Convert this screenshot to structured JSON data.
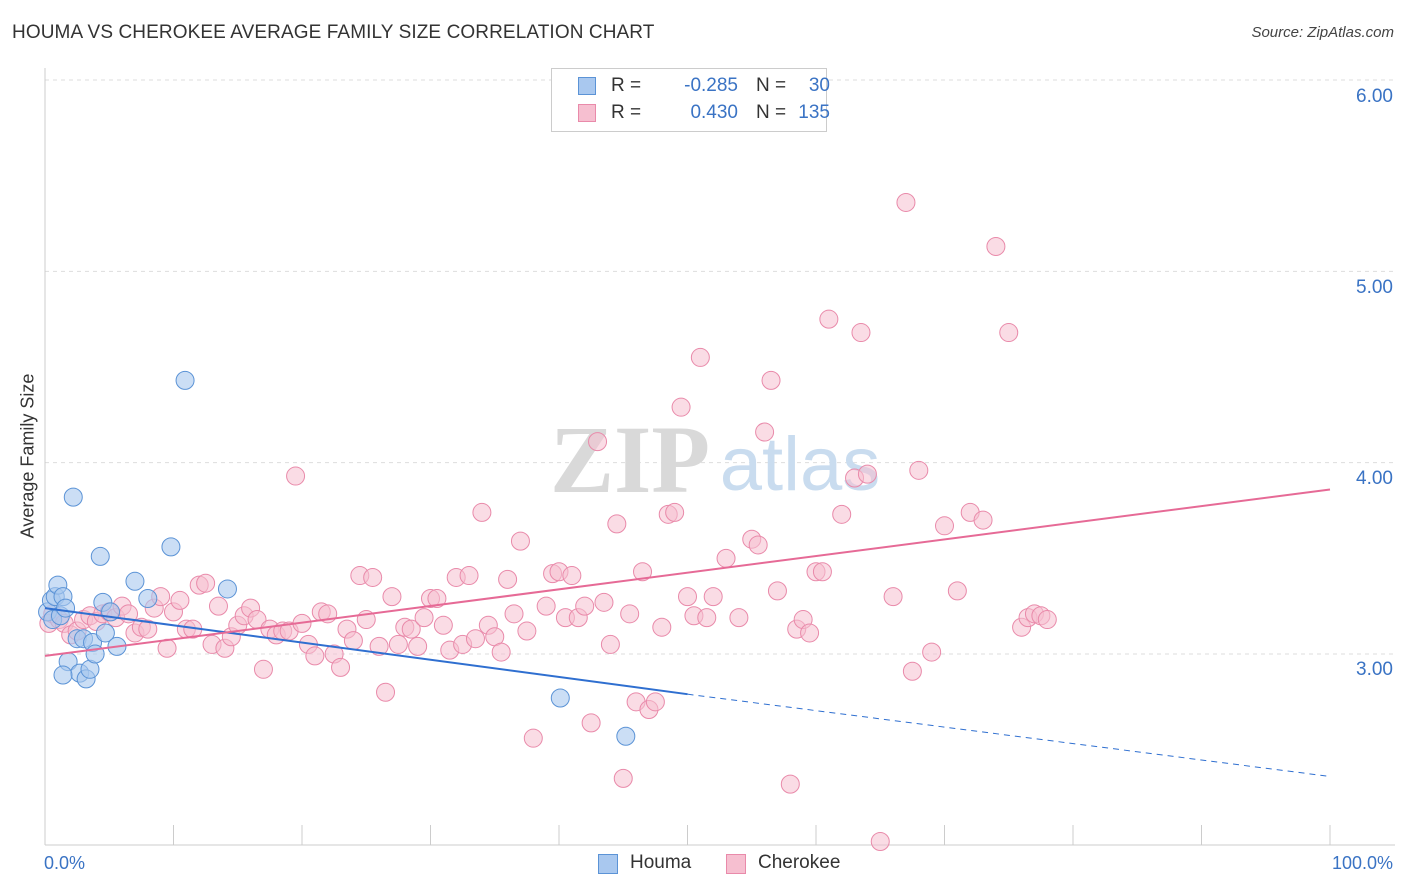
{
  "title": "HOUMA VS CHEROKEE AVERAGE FAMILY SIZE CORRELATION CHART",
  "source": "Source: ZipAtlas.com",
  "watermark": {
    "zip": "ZIP",
    "atlas": "atlas"
  },
  "legend": {
    "houma": {
      "r_label": "R =",
      "r_value": "-0.285",
      "n_label": "N =",
      "n_value": "30"
    },
    "cherokee": {
      "r_label": "R =",
      "r_value": "0.430",
      "n_label": "N =",
      "n_value": "135"
    }
  },
  "bottom_legend": {
    "houma": "Houma",
    "cherokee": "Cherokee"
  },
  "colors": {
    "houma_fill": "#a9c8ef",
    "houma_stroke": "#5b93d6",
    "houma_line": "#2f6fd0",
    "cherokee_fill": "#f6bfd0",
    "cherokee_stroke": "#e98aaa",
    "cherokee_line": "#e66a96",
    "axis_text": "#3a73c4",
    "grid": "#dddddd"
  },
  "chart_data": {
    "type": "scatter",
    "title": "HOUMA VS CHEROKEE AVERAGE FAMILY SIZE CORRELATION CHART",
    "xlabel": "",
    "ylabel": "Average Family Size",
    "xlim": [
      0,
      100
    ],
    "ylim": [
      2.0,
      6.1
    ],
    "x_tick_labels": [
      "0.0%",
      "100.0%"
    ],
    "y_ticks": [
      3.0,
      4.0,
      5.0,
      6.0
    ],
    "y_tick_labels": [
      "3.00",
      "4.00",
      "5.00",
      "6.00"
    ],
    "grid": true,
    "legend_position": "top-center",
    "series": [
      {
        "name": "Houma",
        "r": -0.285,
        "n": 30,
        "trend": {
          "x0": 0,
          "y0": 3.24,
          "x1": 50,
          "y1": 2.79,
          "dashed_to_x": 100,
          "dashed_to_y": 2.36
        },
        "points": [
          [
            0.2,
            3.22
          ],
          [
            0.5,
            3.28
          ],
          [
            0.6,
            3.18
          ],
          [
            0.8,
            3.3
          ],
          [
            1.0,
            3.36
          ],
          [
            1.2,
            3.2
          ],
          [
            1.4,
            3.3
          ],
          [
            1.6,
            3.24
          ],
          [
            1.8,
            2.96
          ],
          [
            2.2,
            3.82
          ],
          [
            2.5,
            3.08
          ],
          [
            2.7,
            2.9
          ],
          [
            3.0,
            3.08
          ],
          [
            3.2,
            2.87
          ],
          [
            3.5,
            2.92
          ],
          [
            3.7,
            3.06
          ],
          [
            3.9,
            3.0
          ],
          [
            4.3,
            3.51
          ],
          [
            4.5,
            3.27
          ],
          [
            4.7,
            3.11
          ],
          [
            5.1,
            3.22
          ],
          [
            5.6,
            3.04
          ],
          [
            7.0,
            3.38
          ],
          [
            8.0,
            3.29
          ],
          [
            9.8,
            3.56
          ],
          [
            10.9,
            4.43
          ],
          [
            14.2,
            3.34
          ],
          [
            1.4,
            2.89
          ],
          [
            40.1,
            2.77
          ],
          [
            45.2,
            2.57
          ]
        ]
      },
      {
        "name": "Cherokee",
        "r": 0.43,
        "n": 135,
        "trend": {
          "x0": 0,
          "y0": 2.99,
          "x1": 100,
          "y1": 3.86
        },
        "points": [
          [
            0.3,
            3.16
          ],
          [
            0.6,
            3.21
          ],
          [
            1.1,
            3.18
          ],
          [
            1.5,
            3.16
          ],
          [
            2.0,
            3.1
          ],
          [
            2.5,
            3.12
          ],
          [
            3.0,
            3.18
          ],
          [
            3.5,
            3.2
          ],
          [
            4.0,
            3.17
          ],
          [
            4.5,
            3.21
          ],
          [
            5.0,
            3.22
          ],
          [
            5.5,
            3.19
          ],
          [
            6.0,
            3.25
          ],
          [
            6.5,
            3.21
          ],
          [
            7.0,
            3.11
          ],
          [
            7.5,
            3.14
          ],
          [
            8.0,
            3.13
          ],
          [
            8.5,
            3.24
          ],
          [
            9.0,
            3.3
          ],
          [
            9.5,
            3.03
          ],
          [
            10.0,
            3.22
          ],
          [
            10.5,
            3.28
          ],
          [
            11.0,
            3.13
          ],
          [
            11.5,
            3.13
          ],
          [
            12.0,
            3.36
          ],
          [
            12.5,
            3.37
          ],
          [
            13.0,
            3.05
          ],
          [
            13.5,
            3.25
          ],
          [
            14.0,
            3.03
          ],
          [
            14.5,
            3.09
          ],
          [
            15.0,
            3.15
          ],
          [
            15.5,
            3.2
          ],
          [
            16.0,
            3.24
          ],
          [
            16.5,
            3.18
          ],
          [
            17.0,
            2.92
          ],
          [
            17.5,
            3.13
          ],
          [
            18.0,
            3.1
          ],
          [
            18.5,
            3.12
          ],
          [
            19.0,
            3.12
          ],
          [
            19.5,
            3.93
          ],
          [
            20.0,
            3.16
          ],
          [
            20.5,
            3.05
          ],
          [
            21.0,
            2.99
          ],
          [
            21.5,
            3.22
          ],
          [
            22.0,
            3.21
          ],
          [
            22.5,
            3.0
          ],
          [
            23.0,
            2.93
          ],
          [
            23.5,
            3.13
          ],
          [
            24.0,
            3.07
          ],
          [
            24.5,
            3.41
          ],
          [
            25.0,
            3.18
          ],
          [
            25.5,
            3.4
          ],
          [
            26.0,
            3.04
          ],
          [
            26.5,
            2.8
          ],
          [
            27.0,
            3.3
          ],
          [
            27.5,
            3.05
          ],
          [
            28.0,
            3.14
          ],
          [
            28.5,
            3.13
          ],
          [
            29.0,
            3.04
          ],
          [
            29.5,
            3.19
          ],
          [
            30.0,
            3.29
          ],
          [
            30.5,
            3.29
          ],
          [
            31.0,
            3.15
          ],
          [
            31.5,
            3.02
          ],
          [
            32.0,
            3.4
          ],
          [
            32.5,
            3.05
          ],
          [
            33.0,
            3.41
          ],
          [
            33.5,
            3.08
          ],
          [
            34.0,
            3.74
          ],
          [
            34.5,
            3.15
          ],
          [
            35.0,
            3.09
          ],
          [
            35.5,
            3.01
          ],
          [
            36.0,
            3.39
          ],
          [
            36.5,
            3.21
          ],
          [
            37.0,
            3.59
          ],
          [
            37.5,
            3.12
          ],
          [
            38.0,
            2.56
          ],
          [
            39.0,
            3.25
          ],
          [
            39.5,
            3.42
          ],
          [
            40.0,
            3.43
          ],
          [
            40.5,
            3.19
          ],
          [
            41.0,
            3.41
          ],
          [
            41.5,
            3.19
          ],
          [
            42.0,
            3.25
          ],
          [
            42.5,
            2.64
          ],
          [
            43.0,
            4.11
          ],
          [
            43.5,
            3.27
          ],
          [
            44.0,
            3.05
          ],
          [
            44.5,
            3.68
          ],
          [
            45.0,
            2.35
          ],
          [
            45.5,
            3.21
          ],
          [
            46.0,
            2.75
          ],
          [
            46.5,
            3.43
          ],
          [
            47.0,
            2.71
          ],
          [
            47.5,
            2.75
          ],
          [
            48.0,
            3.14
          ],
          [
            48.5,
            3.73
          ],
          [
            49.0,
            3.74
          ],
          [
            49.5,
            4.29
          ],
          [
            50.0,
            3.3
          ],
          [
            50.5,
            3.2
          ],
          [
            51.0,
            4.55
          ],
          [
            51.5,
            3.19
          ],
          [
            52.0,
            3.3
          ],
          [
            53.0,
            3.5
          ],
          [
            54.0,
            3.19
          ],
          [
            55.0,
            3.6
          ],
          [
            55.5,
            3.57
          ],
          [
            56.0,
            4.16
          ],
          [
            56.5,
            4.43
          ],
          [
            57.0,
            3.33
          ],
          [
            58.0,
            2.32
          ],
          [
            58.5,
            3.13
          ],
          [
            59.0,
            3.18
          ],
          [
            59.5,
            3.11
          ],
          [
            60.0,
            3.43
          ],
          [
            60.5,
            3.43
          ],
          [
            61.0,
            4.75
          ],
          [
            62.0,
            3.73
          ],
          [
            63.0,
            3.92
          ],
          [
            63.5,
            4.68
          ],
          [
            64.0,
            3.94
          ],
          [
            65.0,
            2.02
          ],
          [
            66.0,
            3.3
          ],
          [
            67.0,
            5.36
          ],
          [
            67.5,
            2.91
          ],
          [
            68.0,
            3.96
          ],
          [
            69.0,
            3.01
          ],
          [
            70.0,
            3.67
          ],
          [
            71.0,
            3.33
          ],
          [
            72.0,
            3.74
          ],
          [
            73.0,
            3.7
          ],
          [
            74.0,
            5.13
          ],
          [
            75.0,
            4.68
          ],
          [
            76.0,
            3.14
          ],
          [
            76.5,
            3.19
          ],
          [
            77.0,
            3.21
          ],
          [
            77.5,
            3.2
          ],
          [
            78.0,
            3.18
          ]
        ]
      }
    ]
  }
}
